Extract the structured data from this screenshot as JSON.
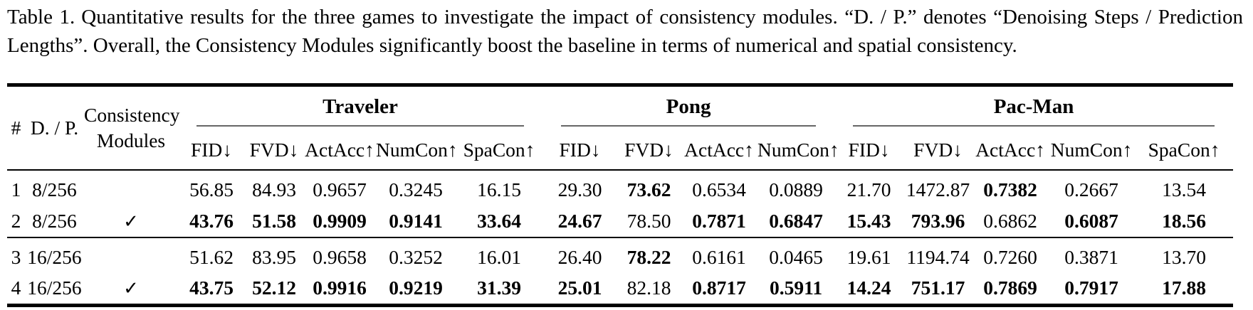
{
  "caption": {
    "label": "Table 1.",
    "text": "Quantitative results for the three games to investigate the impact of consistency modules. “D. / P.” denotes “Denoising Steps / Prediction Lengths”. Overall, the Consistency Modules significantly boost the baseline in terms of numerical and spatial consistency."
  },
  "colors": {
    "text": "#000000",
    "background": "#ffffff",
    "heavy_rule": "#000000",
    "cmidrule_gray": "#666666"
  },
  "table": {
    "corner": {
      "hash": "#",
      "dp": "D. / P.",
      "consistency_line1": "Consistency",
      "consistency_line2": "Modules"
    },
    "checkmark": "✓",
    "groups": [
      {
        "name": "Traveler",
        "metrics": [
          "FID↓",
          "FVD↓",
          "ActAcc↑",
          "NumCon↑",
          "SpaCon↑"
        ]
      },
      {
        "name": "Pong",
        "metrics": [
          "FID↓",
          "FVD↓",
          "ActAcc↑",
          "NumCon↑"
        ]
      },
      {
        "name": "Pac-Man",
        "metrics": [
          "FID↓",
          "FVD↓",
          "ActAcc↑",
          "NumCon↑",
          "SpaCon↑"
        ]
      }
    ],
    "row_groups": [
      {
        "rows": [
          {
            "num": "1",
            "dp": "8/256",
            "consistency": false,
            "values": [
              {
                "v": "56.85"
              },
              {
                "v": "84.93"
              },
              {
                "v": "0.9657"
              },
              {
                "v": "0.3245"
              },
              {
                "v": "16.15"
              },
              {
                "v": "29.30"
              },
              {
                "v": "73.62",
                "b": true
              },
              {
                "v": "0.6534"
              },
              {
                "v": "0.0889"
              },
              {
                "v": "21.70"
              },
              {
                "v": "1472.87"
              },
              {
                "v": "0.7382",
                "b": true
              },
              {
                "v": "0.2667"
              },
              {
                "v": "13.54"
              }
            ]
          },
          {
            "num": "2",
            "dp": "8/256",
            "consistency": true,
            "values": [
              {
                "v": "43.76",
                "b": true
              },
              {
                "v": "51.58",
                "b": true
              },
              {
                "v": "0.9909",
                "b": true
              },
              {
                "v": "0.9141",
                "b": true
              },
              {
                "v": "33.64",
                "b": true
              },
              {
                "v": "24.67",
                "b": true
              },
              {
                "v": "78.50"
              },
              {
                "v": "0.7871",
                "b": true
              },
              {
                "v": "0.6847",
                "b": true
              },
              {
                "v": "15.43",
                "b": true
              },
              {
                "v": "793.96",
                "b": true
              },
              {
                "v": "0.6862"
              },
              {
                "v": "0.6087",
                "b": true
              },
              {
                "v": "18.56",
                "b": true
              }
            ]
          }
        ]
      },
      {
        "rows": [
          {
            "num": "3",
            "dp": "16/256",
            "consistency": false,
            "values": [
              {
                "v": "51.62"
              },
              {
                "v": "83.95"
              },
              {
                "v": "0.9658"
              },
              {
                "v": "0.3252"
              },
              {
                "v": "16.01"
              },
              {
                "v": "26.40"
              },
              {
                "v": "78.22",
                "b": true
              },
              {
                "v": "0.6161"
              },
              {
                "v": "0.0465"
              },
              {
                "v": "19.61"
              },
              {
                "v": "1194.74"
              },
              {
                "v": "0.7260"
              },
              {
                "v": "0.3871"
              },
              {
                "v": "13.70"
              }
            ]
          },
          {
            "num": "4",
            "dp": "16/256",
            "consistency": true,
            "values": [
              {
                "v": "43.75",
                "b": true
              },
              {
                "v": "52.12",
                "b": true
              },
              {
                "v": "0.9916",
                "b": true
              },
              {
                "v": "0.9219",
                "b": true
              },
              {
                "v": "31.39",
                "b": true
              },
              {
                "v": "25.01",
                "b": true
              },
              {
                "v": "82.18"
              },
              {
                "v": "0.8717",
                "b": true
              },
              {
                "v": "0.5911",
                "b": true
              },
              {
                "v": "14.24",
                "b": true
              },
              {
                "v": "751.17",
                "b": true
              },
              {
                "v": "0.7869",
                "b": true
              },
              {
                "v": "0.7917",
                "b": true
              },
              {
                "v": "17.88",
                "b": true
              }
            ]
          }
        ]
      }
    ]
  }
}
